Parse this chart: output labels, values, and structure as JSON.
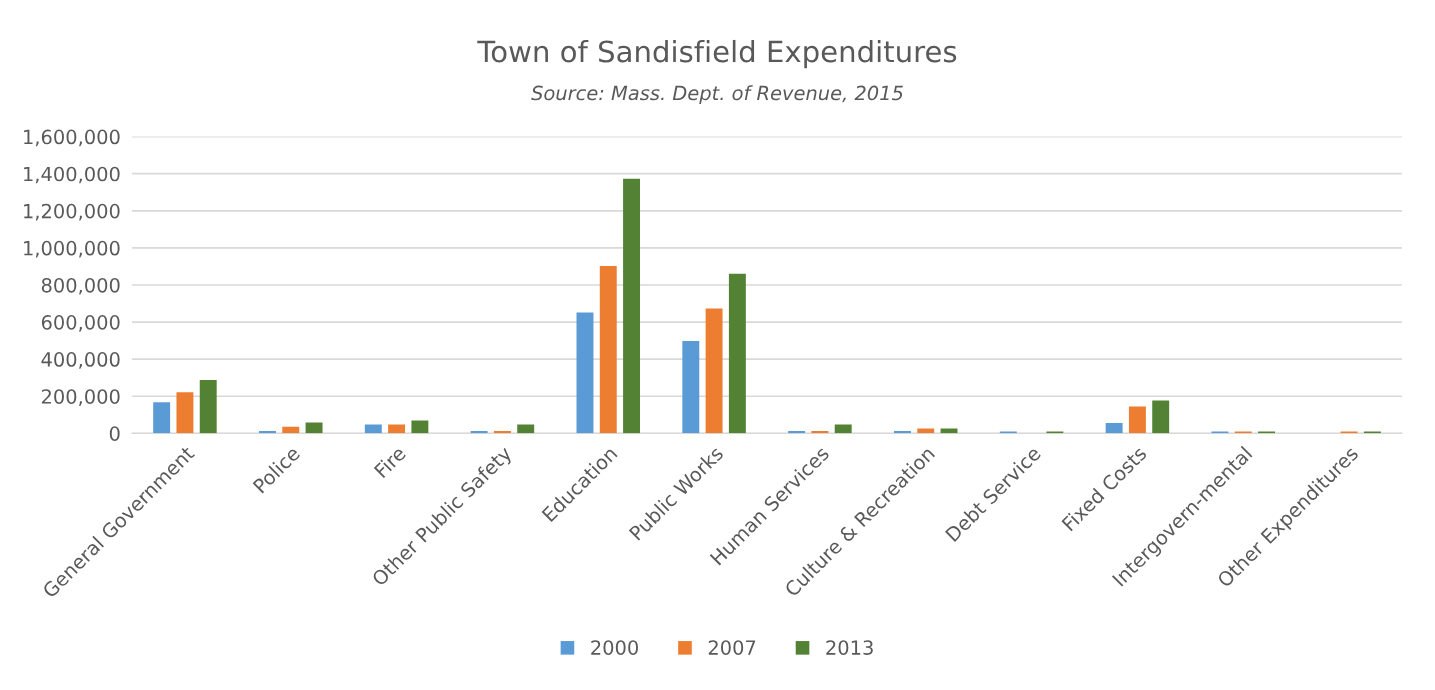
{
  "chart_data": {
    "type": "bar",
    "title": "Town of Sandisfield Expenditures",
    "subtitle": "Source: Mass. Dept. of Revenue, 2015",
    "categories": [
      "General Government",
      "Police",
      "Fire",
      "Other Public Safety",
      "Education",
      "Public Works",
      "Human Services",
      "Culture & Recreation",
      "Debt Service",
      "Fixed Costs",
      "Intergovern-mental",
      "Other Expenditures"
    ],
    "series": [
      {
        "name": "2000",
        "color": "#5b9bd5",
        "values": [
          168000,
          13000,
          47000,
          13000,
          651000,
          498000,
          13000,
          13000,
          10000,
          55000,
          10000,
          0
        ]
      },
      {
        "name": "2007",
        "color": "#ed7d31",
        "values": [
          222000,
          36000,
          47000,
          13000,
          902000,
          673000,
          13000,
          26000,
          0,
          145000,
          10000,
          10000
        ]
      },
      {
        "name": "2013",
        "color": "#548235",
        "values": [
          288000,
          58000,
          69000,
          47000,
          1373000,
          860000,
          47000,
          26000,
          10000,
          177000,
          10000,
          10000
        ]
      }
    ],
    "ylim": [
      0,
      1600000
    ],
    "yticks": [
      {
        "value": 0,
        "label": "0"
      },
      {
        "value": 200000,
        "label": "200,000"
      },
      {
        "value": 400000,
        "label": "400,000"
      },
      {
        "value": 600000,
        "label": "600,000"
      },
      {
        "value": 800000,
        "label": "800,000"
      },
      {
        "value": 1000000,
        "label": "1,000,000"
      },
      {
        "value": 1200000,
        "label": "1,200,000"
      },
      {
        "value": 1400000,
        "label": "1,400,000"
      },
      {
        "value": 1600000,
        "label": "1,600,000"
      }
    ],
    "grid": "y",
    "legend": "bottom"
  }
}
